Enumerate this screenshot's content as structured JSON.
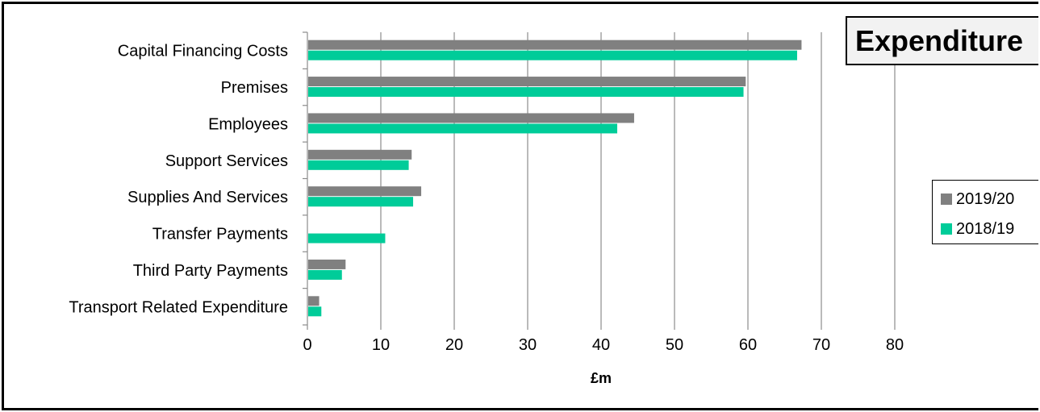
{
  "chart_data": {
    "type": "bar",
    "orientation": "horizontal",
    "title": "Expenditure",
    "xlabel": "£m",
    "ylabel": "",
    "xlim": [
      0,
      80
    ],
    "xticks": [
      0,
      10,
      20,
      30,
      40,
      50,
      60,
      70,
      80
    ],
    "grid": true,
    "legend_position": "right",
    "categories": [
      "Capital Financing Costs",
      "Premises",
      "Employees",
      "Support Services",
      "Supplies And Services",
      "Transfer Payments",
      "Third Party Payments",
      "Transport Related Expenditure"
    ],
    "series": [
      {
        "name": "2019/20",
        "color": "#808080",
        "values": [
          67.3,
          59.7,
          44.5,
          14.2,
          15.5,
          0,
          5.2,
          1.6
        ]
      },
      {
        "name": "2018/19",
        "color": "#00cc99",
        "values": [
          66.7,
          59.4,
          42.2,
          13.8,
          14.4,
          10.6,
          4.7,
          1.9
        ]
      }
    ]
  }
}
